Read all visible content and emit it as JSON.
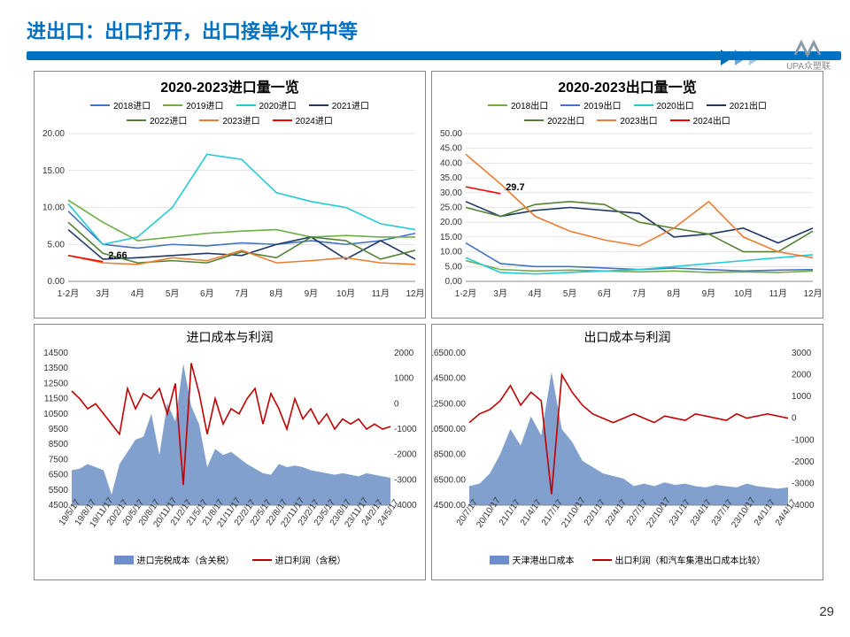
{
  "page": {
    "title": "进出口：出口打开，出口接单水平中等",
    "number": "29",
    "logo_text": "UPA众塑联"
  },
  "colors": {
    "title": "#0070c0",
    "c2018": "#4472c4",
    "c2019": "#70ad47",
    "c2020": "#26c9d6",
    "c2021": "#1f3864",
    "c2022": "#548235",
    "c2023": "#ed7d31",
    "c2024": "#ff0000",
    "area": "#6b8fc6",
    "red_line": "#c00000",
    "grid": "#cccccc"
  },
  "chart1": {
    "title": "2020-2023进口量一览",
    "title_fontsize": 15,
    "ylim": [
      0,
      20
    ],
    "ytick_step": 5,
    "x_labels": [
      "1-2月",
      "3月",
      "4月",
      "5月",
      "6月",
      "7月",
      "8月",
      "9月",
      "10月",
      "11月",
      "12月"
    ],
    "legend": [
      {
        "label": "2018进口",
        "color": "#4472c4"
      },
      {
        "label": "2019进口",
        "color": "#70ad47"
      },
      {
        "label": "2020进口",
        "color": "#26c9d6"
      },
      {
        "label": "2021进口",
        "color": "#1f3864"
      },
      {
        "label": "2022进口",
        "color": "#548235"
      },
      {
        "label": "2023进口",
        "color": "#ed7d31"
      },
      {
        "label": "2024进口",
        "color": "#ff0000"
      }
    ],
    "series": {
      "2018": [
        9.5,
        5,
        4.5,
        5,
        4.8,
        5.2,
        5,
        5.5,
        5,
        5.5,
        6.5
      ],
      "2019": [
        11,
        8,
        5.5,
        6,
        6.5,
        6.8,
        7,
        6,
        6.2,
        6,
        6
      ],
      "2020": [
        10.5,
        5,
        6,
        10,
        17.2,
        16.5,
        12,
        10.8,
        10,
        7.8,
        7
      ],
      "2021": [
        7,
        3,
        3.2,
        3.5,
        3.8,
        3.5,
        5,
        6,
        3,
        5.5,
        3
      ],
      "2022": [
        8,
        3.8,
        2.5,
        2.8,
        2.5,
        4,
        3.2,
        6,
        5.5,
        3,
        4.2
      ],
      "2023": [
        3.5,
        2.5,
        2.3,
        3.2,
        2.8,
        4.2,
        2.5,
        2.8,
        3.2,
        2.5,
        2.3
      ],
      "2024": [
        3.5,
        2.66
      ]
    },
    "annotation": {
      "text": "2.66",
      "x_idx": 1,
      "y": 2.66
    }
  },
  "chart2": {
    "title": "2020-2023出口量一览",
    "title_fontsize": 15,
    "ylim": [
      0,
      50
    ],
    "ytick_step": 5,
    "x_labels": [
      "1-2月",
      "3月",
      "4月",
      "5月",
      "6月",
      "7月",
      "8月",
      "9月",
      "10月",
      "11月",
      "12月"
    ],
    "legend": [
      {
        "label": "2018出口",
        "color": "#70ad47"
      },
      {
        "label": "2019出口",
        "color": "#4472c4"
      },
      {
        "label": "2020出口",
        "color": "#26c9d6"
      },
      {
        "label": "2021出口",
        "color": "#1f3864"
      },
      {
        "label": "2022出口",
        "color": "#548235"
      },
      {
        "label": "2023出口",
        "color": "#ed7d31"
      },
      {
        "label": "2024出口",
        "color": "#ff0000"
      }
    ],
    "series": {
      "2018": [
        13,
        6,
        5,
        5,
        4.5,
        4,
        4.5,
        4,
        3.5,
        3.8,
        4
      ],
      "2019": [
        7,
        4,
        3.5,
        3.8,
        3.5,
        3.2,
        3.5,
        3,
        3.2,
        3,
        3.5
      ],
      "2020": [
        8,
        3,
        2.5,
        3,
        3.5,
        4,
        5,
        6,
        7,
        8,
        9
      ],
      "2021": [
        27,
        22,
        24,
        25,
        24,
        23,
        15,
        16,
        18,
        13,
        18
      ],
      "2022": [
        25,
        22,
        26,
        27,
        26,
        20,
        18,
        16,
        10,
        10,
        17
      ],
      "2023": [
        43,
        33,
        22,
        17,
        14,
        12,
        18,
        27,
        15,
        10,
        8
      ],
      "2024": [
        32,
        29.7
      ]
    },
    "annotation": {
      "text": "29.7",
      "x_idx": 1,
      "y": 29.7
    }
  },
  "chart3": {
    "title": "进口成本与利润",
    "title_fontsize": 14,
    "yleft": {
      "min": 4500,
      "max": 14500,
      "step": 1000
    },
    "yright": {
      "min": -4000,
      "max": 2000,
      "step": 1000
    },
    "x_labels": [
      "19/5/17",
      "19/8/17",
      "19/11/17",
      "20/2/17",
      "20/5/17",
      "20/8/17",
      "20/11/17",
      "21/2/17",
      "21/5/17",
      "21/8/17",
      "21/11/17",
      "22/2/17",
      "22/5/17",
      "22/8/17",
      "22/11/17",
      "23/2/17",
      "23/5/17",
      "23/8/17",
      "23/11/17",
      "24/2/17",
      "24/5/17"
    ],
    "legend": [
      {
        "label": "进口完税成本（含关税）",
        "type": "block",
        "color": "#6b8fc6"
      },
      {
        "label": "进口利润（含税）",
        "type": "line",
        "color": "#c00000"
      }
    ],
    "area": [
      6800,
      6900,
      7200,
      7000,
      6800,
      5200,
      7200,
      8000,
      8800,
      9000,
      10500,
      7800,
      11200,
      10000,
      13800,
      11000,
      9800,
      7000,
      8200,
      7800,
      8000,
      7600,
      7200,
      6900,
      6600,
      6500,
      7200,
      7000,
      7100,
      7000,
      6800,
      6700,
      6600,
      6500,
      6600,
      6500,
      6400,
      6600,
      6500,
      6400,
      6300
    ],
    "line": [
      500,
      200,
      -200,
      0,
      -400,
      -800,
      -1200,
      600,
      -200,
      400,
      200,
      600,
      -400,
      800,
      -3200,
      1600,
      400,
      -1200,
      200,
      -800,
      -200,
      -400,
      200,
      600,
      -800,
      400,
      -200,
      -1000,
      200,
      -600,
      -200,
      -800,
      -400,
      -1000,
      -600,
      -800,
      -600,
      -1000,
      -800,
      -1000,
      -900
    ]
  },
  "chart4": {
    "title": "出口成本与利润",
    "title_fontsize": 14,
    "yleft": {
      "min": 4500,
      "max": 16500,
      "step": 2000
    },
    "yright": {
      "min": -4000,
      "max": 3000,
      "step": 1000
    },
    "x_labels": [
      "20/7/17",
      "20/10/17",
      "21/1/17",
      "21/4/17",
      "21/7/17",
      "21/10/17",
      "22/1/17",
      "22/4/17",
      "22/7/17",
      "22/10/17",
      "23/1/17",
      "23/4/17",
      "23/7/17",
      "23/10/17",
      "24/1/17",
      "24/4/17"
    ],
    "legend": [
      {
        "label": "天津港出口成本",
        "type": "block",
        "color": "#6b8fc6"
      },
      {
        "label": "出口利润（和汽车集港出口成本比较）",
        "type": "line",
        "color": "#c00000"
      }
    ],
    "area": [
      6000,
      6200,
      7000,
      8500,
      10500,
      9200,
      11500,
      10000,
      15000,
      10500,
      9500,
      8000,
      7500,
      7000,
      6800,
      6600,
      6000,
      6200,
      6000,
      6300,
      6100,
      6200,
      6000,
      5900,
      6100,
      6000,
      5900,
      6200,
      6000,
      5900,
      5800,
      5900
    ],
    "line": [
      -200,
      200,
      400,
      800,
      1500,
      600,
      1200,
      800,
      -3500,
      2000,
      1200,
      600,
      200,
      0,
      -200,
      0,
      200,
      0,
      -200,
      100,
      0,
      -100,
      200,
      100,
      0,
      -100,
      200,
      0,
      100,
      200,
      100,
      0
    ]
  }
}
